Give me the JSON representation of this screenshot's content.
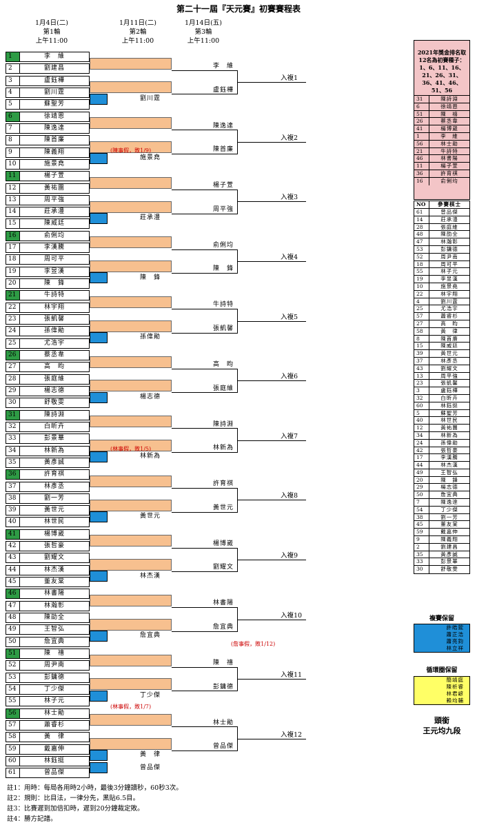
{
  "title": "第二十一屆『天元賽』初賽賽程表",
  "rounds": [
    {
      "date": "1月4日(二)",
      "round": "第1輪",
      "time": "上午11:00"
    },
    {
      "date": "1月11日(二)",
      "round": "第2輪",
      "time": "上午11:00"
    },
    {
      "date": "1月14日(五)",
      "round": "第3輪",
      "time": "上午11:00"
    }
  ],
  "players": [
    {
      "n": "1",
      "name": "李　維",
      "seed": true
    },
    {
      "n": "2",
      "name": "劉建昌",
      "seed": false
    },
    {
      "n": "3",
      "name": "盧鈺樺",
      "seed": false
    },
    {
      "n": "4",
      "name": "劉川霆",
      "seed": false
    },
    {
      "n": "5",
      "name": "蘇聖芳",
      "seed": false
    },
    {
      "n": "6",
      "name": "徐靖恩",
      "seed": true
    },
    {
      "n": "7",
      "name": "陳逸達",
      "seed": false
    },
    {
      "n": "8",
      "name": "陳首廉",
      "seed": false
    },
    {
      "n": "9",
      "name": "陳義翔",
      "seed": false
    },
    {
      "n": "10",
      "name": "施景堯",
      "seed": false
    },
    {
      "n": "11",
      "name": "楊子萱",
      "seed": true
    },
    {
      "n": "12",
      "name": "黃祐團",
      "seed": false
    },
    {
      "n": "13",
      "name": "周平強",
      "seed": false
    },
    {
      "n": "14",
      "name": "莊承澧",
      "seed": false
    },
    {
      "n": "15",
      "name": "陳威廷",
      "seed": false
    },
    {
      "n": "16",
      "name": "俞俐均",
      "seed": true
    },
    {
      "n": "17",
      "name": "李漢騰",
      "seed": false
    },
    {
      "n": "18",
      "name": "周可平",
      "seed": false
    },
    {
      "n": "19",
      "name": "李昱漢",
      "seed": false
    },
    {
      "n": "20",
      "name": "陳　鋒",
      "seed": false
    },
    {
      "n": "21",
      "name": "牛詩特",
      "seed": true
    },
    {
      "n": "22",
      "name": "林宇翔",
      "seed": false
    },
    {
      "n": "23",
      "name": "張凱馨",
      "seed": false
    },
    {
      "n": "24",
      "name": "孫偉勛",
      "seed": false
    },
    {
      "n": "25",
      "name": "尤浩宇",
      "seed": false
    },
    {
      "n": "26",
      "name": "蔡丞韋",
      "seed": true
    },
    {
      "n": "27",
      "name": "高　昀",
      "seed": false
    },
    {
      "n": "28",
      "name": "張庭維",
      "seed": false
    },
    {
      "n": "29",
      "name": "楊志德",
      "seed": false
    },
    {
      "n": "30",
      "name": "舒敬雯",
      "seed": false
    },
    {
      "n": "31",
      "name": "陳詩淵",
      "seed": true
    },
    {
      "n": "32",
      "name": "白昕卉",
      "seed": false
    },
    {
      "n": "33",
      "name": "彭景華",
      "seed": false
    },
    {
      "n": "34",
      "name": "林新為",
      "seed": false
    },
    {
      "n": "35",
      "name": "黃彥誠",
      "seed": false
    },
    {
      "n": "36",
      "name": "許育祺",
      "seed": true
    },
    {
      "n": "37",
      "name": "林彥丞",
      "seed": false
    },
    {
      "n": "38",
      "name": "劉一芳",
      "seed": false
    },
    {
      "n": "39",
      "name": "黃世元",
      "seed": false
    },
    {
      "n": "40",
      "name": "林世民",
      "seed": false
    },
    {
      "n": "41",
      "name": "楊博崴",
      "seed": true
    },
    {
      "n": "42",
      "name": "張哲豪",
      "seed": false
    },
    {
      "n": "43",
      "name": "劉耀文",
      "seed": false
    },
    {
      "n": "44",
      "name": "林杰漢",
      "seed": false
    },
    {
      "n": "45",
      "name": "董友棠",
      "seed": false
    },
    {
      "n": "46",
      "name": "林書陽",
      "seed": true
    },
    {
      "n": "47",
      "name": "林瀚彰",
      "seed": false
    },
    {
      "n": "48",
      "name": "陳劭全",
      "seed": false
    },
    {
      "n": "49",
      "name": "王智弘",
      "seed": false
    },
    {
      "n": "50",
      "name": "詹宜典",
      "seed": false
    },
    {
      "n": "51",
      "name": "陳　禧",
      "seed": true
    },
    {
      "n": "52",
      "name": "周尹南",
      "seed": false
    },
    {
      "n": "53",
      "name": "彭鏞德",
      "seed": false
    },
    {
      "n": "54",
      "name": "丁少傑",
      "seed": false
    },
    {
      "n": "55",
      "name": "林子元",
      "seed": false
    },
    {
      "n": "56",
      "name": "林士勛",
      "seed": true
    },
    {
      "n": "57",
      "name": "蕭睿杉",
      "seed": false
    },
    {
      "n": "58",
      "name": "黃　律",
      "seed": false
    },
    {
      "n": "59",
      "name": "戴嘉伸",
      "seed": false
    },
    {
      "n": "60",
      "name": "林鈺挺",
      "seed": false
    },
    {
      "n": "61",
      "name": "曾品傑",
      "seed": false
    }
  ],
  "groups": [
    {
      "r2_top": "李　維",
      "r2_bot": "盧鈺樺",
      "r1_winner": "劉川霆",
      "qual": "入複1",
      "note": ""
    },
    {
      "r2_top": "陳逸達",
      "r2_bot": "陳首廉",
      "r1_winner": "施景堯",
      "qual": "入複2",
      "note": "(陳事假，敗1/9)"
    },
    {
      "r2_top": "楊子萱",
      "r2_bot": "周平強",
      "r1_winner": "莊承澧",
      "qual": "入複3",
      "note": ""
    },
    {
      "r2_top": "俞俐均",
      "r2_bot": "陳　鋒",
      "r1_winner": "陳　鋒",
      "qual": "入複4",
      "note": ""
    },
    {
      "r2_top": "牛詩特",
      "r2_bot": "張凱馨",
      "r1_winner": "孫偉勛",
      "qual": "入複5",
      "note": ""
    },
    {
      "r2_top": "高　昀",
      "r2_bot": "張庭維",
      "r1_winner": "楊志德",
      "qual": "入複6",
      "note": ""
    },
    {
      "r2_top": "陳詩淵",
      "r2_bot": "林新為",
      "r1_winner": "林新為",
      "qual": "入複7",
      "note": "(林事假，敗1/5)"
    },
    {
      "r2_top": "許育祺",
      "r2_bot": "黃世元",
      "r1_winner": "黃世元",
      "qual": "入複8",
      "note": ""
    },
    {
      "r2_top": "楊博崴",
      "r2_bot": "劉耀文",
      "r1_winner": "林杰漢",
      "qual": "入複9",
      "note": ""
    },
    {
      "r2_top": "林書陽",
      "r2_bot": "詹宜典",
      "r1_winner": "詹宜典",
      "qual": "入複10",
      "note": "(詹事假，敗1/12)"
    },
    {
      "r2_top": "陳　禧",
      "r2_bot": "彭鏞德",
      "r1_winner": "丁少傑",
      "qual": "入複11",
      "note": "(林事假，敗1/7)"
    },
    {
      "r2_top": "林士勛",
      "r2_bot": "曾品傑",
      "r1_winner": "黃　律",
      "qual": "入複12",
      "note": ""
    }
  ],
  "r1_extra_winner": "曾品傑",
  "notes": [
    "註1：用時：每局各用時2小時，最後3分鐘讀秒，60秒3次。",
    "註2：規則：比目法，一律分先，黑貼6.5目。",
    "註3：比賽遲到加倍扣時，遲到20分鐘裁定敗。",
    "註4：勝方記譜。"
  ],
  "seed_panel": {
    "heading": [
      "2021年獎金排名取",
      "12名為初賽種子：",
      "1、6、11、16、",
      "21、26、31、",
      "36、41、46、",
      "51、56"
    ],
    "rows": [
      [
        "31",
        "陳詩淵"
      ],
      [
        "6",
        "徐靖恩"
      ],
      [
        "51",
        "陳　禧"
      ],
      [
        "26",
        "蔡丞韋"
      ],
      [
        "41",
        "楊博崴"
      ],
      [
        "1",
        "李　維"
      ],
      [
        "56",
        "林士勛"
      ],
      [
        "21",
        "牛詩特"
      ],
      [
        "46",
        "林書陽"
      ],
      [
        "11",
        "楊子萱"
      ],
      [
        "36",
        "許育祺"
      ],
      [
        "16",
        "俞俐均"
      ]
    ]
  },
  "player_list": {
    "headers": [
      "NO",
      "參賽棋士"
    ],
    "rows": [
      [
        "61",
        "曾品傑"
      ],
      [
        "14",
        "莊承澧"
      ],
      [
        "28",
        "張庭維"
      ],
      [
        "48",
        "陳劭全"
      ],
      [
        "47",
        "林瀚彰"
      ],
      [
        "53",
        "彭鏞德"
      ],
      [
        "52",
        "周尹南"
      ],
      [
        "18",
        "周可平"
      ],
      [
        "55",
        "林子元"
      ],
      [
        "19",
        "李昱漢"
      ],
      [
        "10",
        "施景堯"
      ],
      [
        "22",
        "林宇翔"
      ],
      [
        "4",
        "劉川霆"
      ],
      [
        "25",
        "尤浩宇"
      ],
      [
        "57",
        "蕭睿杉"
      ],
      [
        "27",
        "高　昀"
      ],
      [
        "58",
        "黃　律"
      ],
      [
        "8",
        "陳首廉"
      ],
      [
        "15",
        "陳威廷"
      ],
      [
        "39",
        "黃世元"
      ],
      [
        "37",
        "林彥丞"
      ],
      [
        "43",
        "劉耀文"
      ],
      [
        "13",
        "周平強"
      ],
      [
        "23",
        "張凱馨"
      ],
      [
        "3",
        "盧鈺樺"
      ],
      [
        "32",
        "白昕卉"
      ],
      [
        "60",
        "林鈺挺"
      ],
      [
        "5",
        "蘇聖芳"
      ],
      [
        "40",
        "林世民"
      ],
      [
        "12",
        "黃祐團"
      ],
      [
        "34",
        "林新為"
      ],
      [
        "24",
        "孫偉勛"
      ],
      [
        "42",
        "張哲豪"
      ],
      [
        "17",
        "李漢騰"
      ],
      [
        "44",
        "林杰漢"
      ],
      [
        "49",
        "王智弘"
      ],
      [
        "20",
        "陳　鋒"
      ],
      [
        "29",
        "楊志德"
      ],
      [
        "50",
        "詹宜典"
      ],
      [
        "7",
        "陳逸達"
      ],
      [
        "54",
        "丁少傑"
      ],
      [
        "38",
        "劉一芳"
      ],
      [
        "45",
        "董友棠"
      ],
      [
        "59",
        "戴嘉伸"
      ],
      [
        "9",
        "陳義翔"
      ],
      [
        "2",
        "劉建昌"
      ],
      [
        "35",
        "黃彥誠"
      ],
      [
        "33",
        "彭景華"
      ],
      [
        "30",
        "舒敬雯"
      ]
    ]
  },
  "fuzhu": {
    "title": "複賽保留",
    "names": [
      "許皓鋐",
      "蕭正浩",
      "蕭亮鈞",
      "林立祥"
    ],
    "color": "#1f8fd8"
  },
  "xunhuan": {
    "title": "循環圈保留",
    "names": [
      "簡靖庭",
      "陳祈睿",
      "林君諺",
      "賴均輔"
    ],
    "color": "#ffff66"
  },
  "touxian": {
    "label": "頭銜",
    "holder": "王元均九段"
  }
}
